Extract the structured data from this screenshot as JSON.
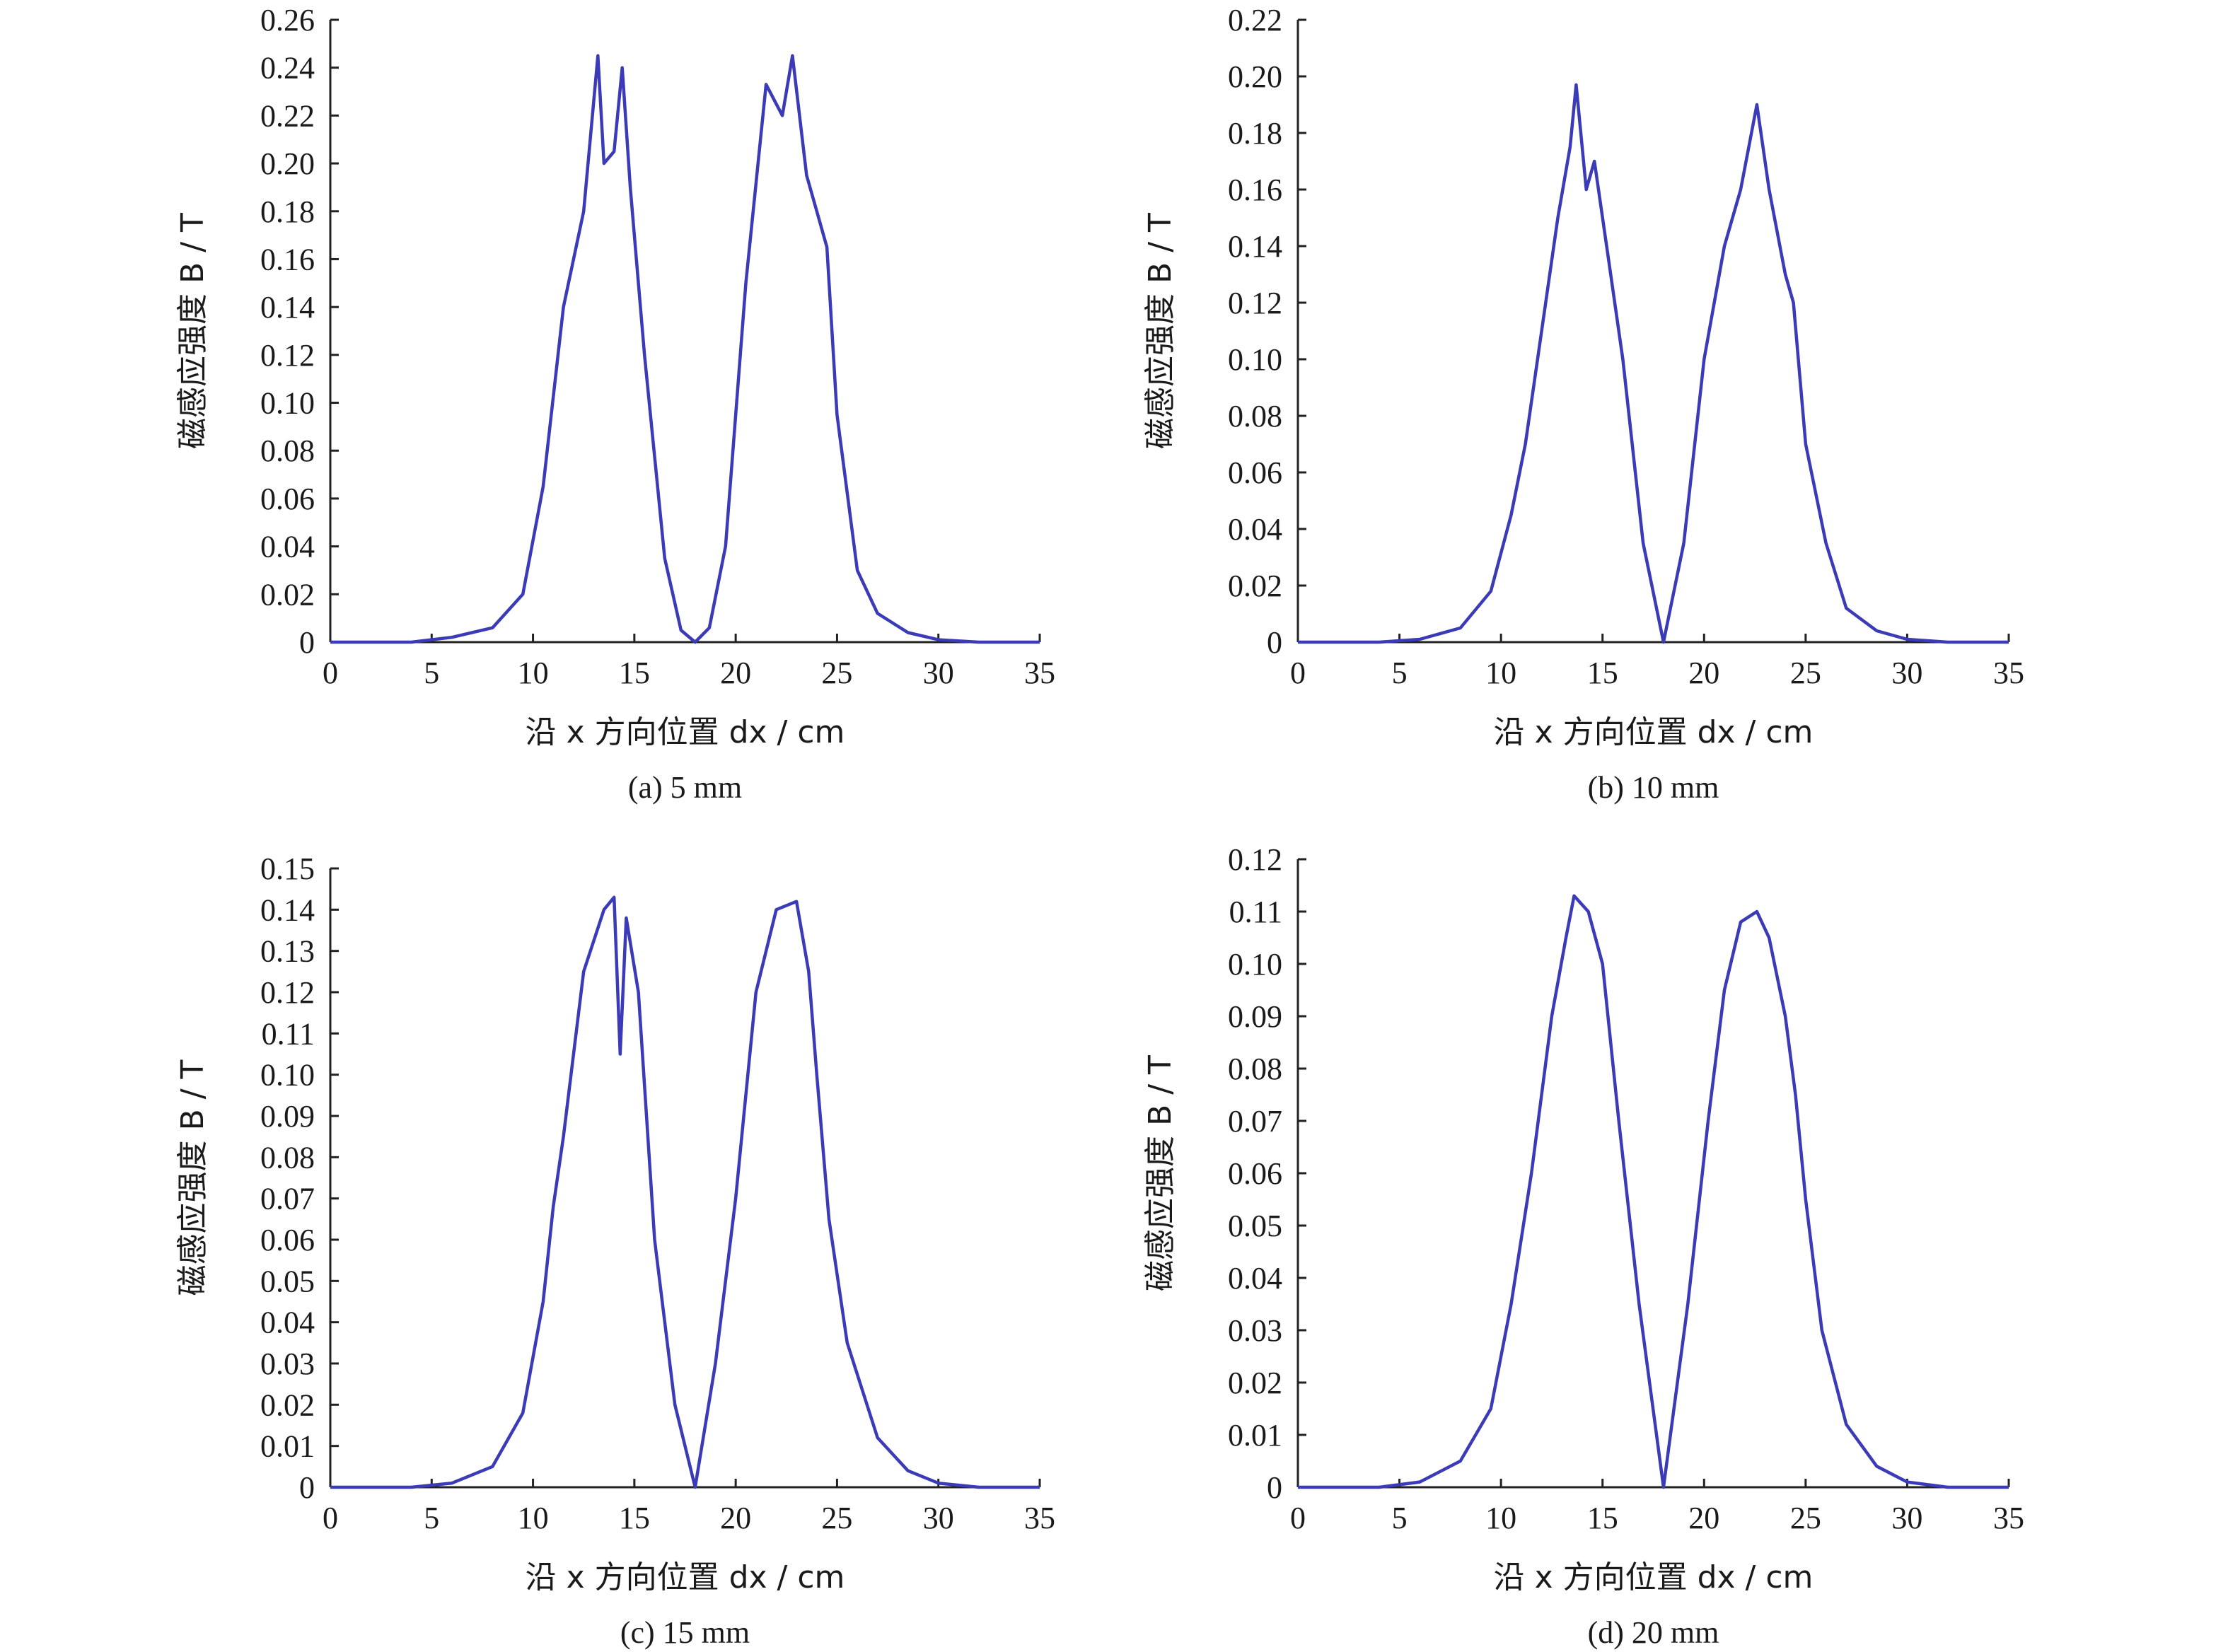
{
  "chart_data": [
    {
      "type": "line",
      "caption": "(a) 5 mm",
      "xlabel": "沿 x 方向位置 dx / cm",
      "ylabel": "磁感应强度 B / T",
      "xlim": [
        0,
        35
      ],
      "ylim": [
        0,
        0.26
      ],
      "xticks": [
        "0",
        "5",
        "10",
        "15",
        "20",
        "25",
        "30",
        "35"
      ],
      "yticks": [
        "0",
        "0.02",
        "0.04",
        "0.06",
        "0.08",
        "0.10",
        "0.12",
        "0.14",
        "0.16",
        "0.18",
        "0.20",
        "0.22",
        "0.24",
        "0.26"
      ],
      "color": "#3b3bb8",
      "x": [
        0,
        4,
        6,
        8,
        9.5,
        10.5,
        11.5,
        12.5,
        13.2,
        13.5,
        14,
        14.4,
        14.8,
        15.5,
        16.5,
        17.3,
        18,
        18.7,
        19.5,
        20.5,
        21.5,
        22.3,
        22.8,
        23.5,
        24,
        24.5,
        25,
        26,
        27,
        28.5,
        30,
        32,
        35
      ],
      "y": [
        0,
        0,
        0.002,
        0.006,
        0.02,
        0.065,
        0.14,
        0.18,
        0.245,
        0.2,
        0.205,
        0.24,
        0.19,
        0.12,
        0.035,
        0.005,
        0,
        0.006,
        0.04,
        0.15,
        0.233,
        0.22,
        0.245,
        0.195,
        0.18,
        0.165,
        0.095,
        0.03,
        0.012,
        0.004,
        0.001,
        0,
        0
      ]
    },
    {
      "type": "line",
      "caption": "(b) 10 mm",
      "xlabel": "沿 x 方向位置 dx / cm",
      "ylabel": "磁感应强度 B / T",
      "xlim": [
        0,
        35
      ],
      "ylim": [
        0,
        0.22
      ],
      "xticks": [
        "0",
        "5",
        "10",
        "15",
        "20",
        "25",
        "30",
        "35"
      ],
      "yticks": [
        "0",
        "0.02",
        "0.04",
        "0.06",
        "0.08",
        "0.10",
        "0.12",
        "0.14",
        "0.16",
        "0.18",
        "0.20",
        "0.22"
      ],
      "color": "#3b3bb8",
      "x": [
        0,
        4,
        6,
        8,
        9.5,
        10.5,
        11.2,
        12,
        12.8,
        13.4,
        13.7,
        14.2,
        14.6,
        15.2,
        16,
        17,
        18,
        19,
        20,
        21,
        21.8,
        22.6,
        23.2,
        24,
        24.4,
        25,
        26,
        27,
        28.5,
        30,
        32,
        35
      ],
      "y": [
        0,
        0,
        0.001,
        0.005,
        0.018,
        0.045,
        0.07,
        0.11,
        0.15,
        0.175,
        0.197,
        0.16,
        0.17,
        0.14,
        0.1,
        0.035,
        0,
        0.035,
        0.1,
        0.14,
        0.16,
        0.19,
        0.16,
        0.13,
        0.12,
        0.07,
        0.035,
        0.012,
        0.004,
        0.001,
        0,
        0
      ]
    },
    {
      "type": "line",
      "caption": "(c) 15 mm",
      "xlabel": "沿 x 方向位置 dx / cm",
      "ylabel": "磁感应强度 B / T",
      "xlim": [
        0,
        35
      ],
      "ylim": [
        0,
        0.15
      ],
      "xticks": [
        "0",
        "5",
        "10",
        "15",
        "20",
        "25",
        "30",
        "35"
      ],
      "yticks": [
        "0",
        "0.01",
        "0.02",
        "0.03",
        "0.04",
        "0.05",
        "0.06",
        "0.07",
        "0.08",
        "0.09",
        "0.10",
        "0.11",
        "0.12",
        "0.13",
        "0.14",
        "0.15"
      ],
      "color": "#3b3bb8",
      "x": [
        0,
        4,
        6,
        8,
        9.5,
        10.5,
        11,
        11.5,
        12.5,
        13.5,
        14,
        14.3,
        14.6,
        15.2,
        16,
        17,
        18,
        19,
        20,
        21,
        22,
        23,
        23.6,
        24,
        24.6,
        25.5,
        27,
        28.5,
        30,
        32,
        35
      ],
      "y": [
        0,
        0,
        0.001,
        0.005,
        0.018,
        0.045,
        0.068,
        0.085,
        0.125,
        0.14,
        0.143,
        0.105,
        0.138,
        0.12,
        0.06,
        0.02,
        0,
        0.03,
        0.07,
        0.12,
        0.14,
        0.142,
        0.125,
        0.1,
        0.065,
        0.035,
        0.012,
        0.004,
        0.001,
        0,
        0
      ]
    },
    {
      "type": "line",
      "caption": "(d) 20 mm",
      "xlabel": "沿 x 方向位置 dx / cm",
      "ylabel": "磁感应强度 B / T",
      "xlim": [
        0,
        35
      ],
      "ylim": [
        0,
        0.12
      ],
      "xticks": [
        "0",
        "5",
        "10",
        "15",
        "20",
        "25",
        "30",
        "35"
      ],
      "yticks": [
        "0",
        "0.01",
        "0.02",
        "0.03",
        "0.04",
        "0.05",
        "0.06",
        "0.07",
        "0.08",
        "0.09",
        "0.10",
        "0.11",
        "0.12"
      ],
      "color": "#3b3bb8",
      "x": [
        0,
        4,
        6,
        8,
        9.5,
        10.5,
        11.5,
        12.5,
        13.2,
        13.6,
        14.3,
        15,
        15.8,
        16.8,
        18,
        19.2,
        20.2,
        21,
        21.8,
        22.6,
        23.2,
        24,
        24.5,
        25,
        25.8,
        27,
        28.5,
        30,
        32,
        35
      ],
      "y": [
        0,
        0,
        0.001,
        0.005,
        0.015,
        0.035,
        0.06,
        0.09,
        0.105,
        0.113,
        0.11,
        0.1,
        0.07,
        0.035,
        0,
        0.035,
        0.07,
        0.095,
        0.108,
        0.11,
        0.105,
        0.09,
        0.075,
        0.055,
        0.03,
        0.012,
        0.004,
        0.001,
        0,
        0
      ]
    }
  ]
}
